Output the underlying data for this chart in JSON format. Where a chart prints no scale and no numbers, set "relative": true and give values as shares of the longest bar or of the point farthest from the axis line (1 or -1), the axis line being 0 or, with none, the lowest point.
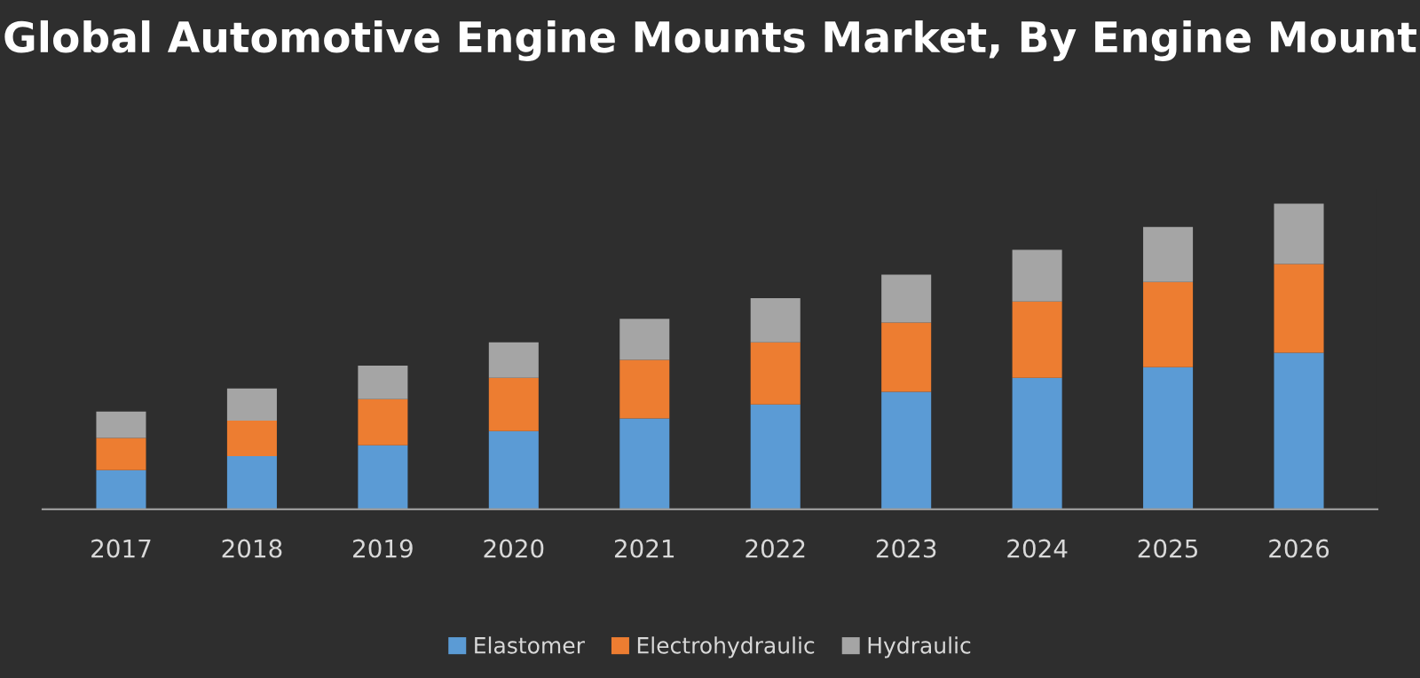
{
  "chart_data": {
    "type": "bar",
    "title": "Global Automotive Engine Mounts Market, By Engine Mount",
    "stacked": true,
    "relative": true,
    "legend": "bottom",
    "grid": false,
    "categories": [
      "2017",
      "2018",
      "2019",
      "2020",
      "2021",
      "2022",
      "2023",
      "2024",
      "2025",
      "2026"
    ],
    "series": [
      {
        "name": "Elastomer",
        "color": "#5b9bd5",
        "values": [
          0.128,
          0.174,
          0.209,
          0.256,
          0.297,
          0.343,
          0.384,
          0.43,
          0.465,
          0.512
        ]
      },
      {
        "name": "Electrohydraulic",
        "color": "#ed7d31",
        "values": [
          0.105,
          0.116,
          0.151,
          0.174,
          0.192,
          0.203,
          0.227,
          0.25,
          0.279,
          0.291
        ]
      },
      {
        "name": "Hydraulic",
        "color": "#a5a5a5",
        "values": [
          0.087,
          0.105,
          0.11,
          0.116,
          0.134,
          0.145,
          0.157,
          0.169,
          0.18,
          0.197
        ]
      }
    ]
  }
}
